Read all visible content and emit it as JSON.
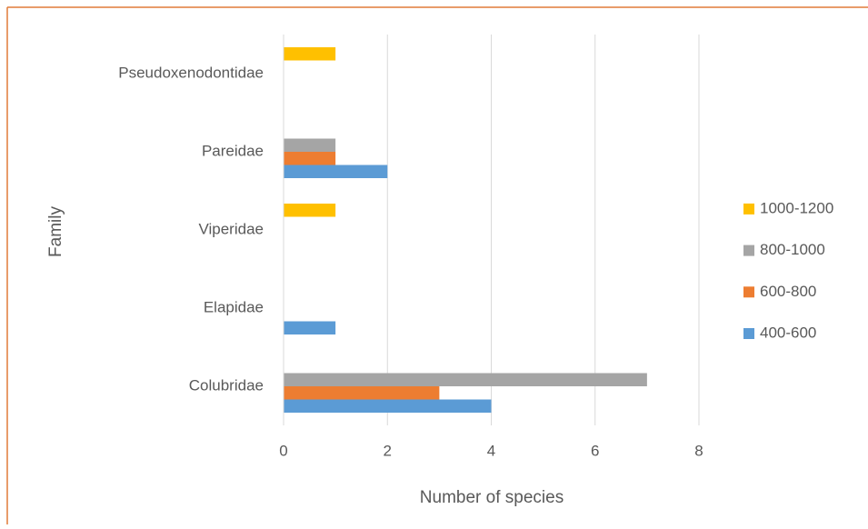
{
  "chart_data": {
    "type": "hbar",
    "categories": [
      "Colubridae",
      "Elapidae",
      "Viperidae",
      "Pareidae",
      "Pseudoxenodontidae"
    ],
    "series": [
      {
        "name": "400-600",
        "color": "#5b9bd5",
        "values": [
          4,
          1,
          0,
          2,
          0
        ]
      },
      {
        "name": "600-800",
        "color": "#ed7d31",
        "values": [
          3,
          0,
          0,
          1,
          0
        ]
      },
      {
        "name": "800-1000",
        "color": "#a5a5a5",
        "values": [
          7,
          0,
          0,
          1,
          0
        ]
      },
      {
        "name": "1000-1200",
        "color": "#ffc000",
        "values": [
          0,
          0,
          1,
          0,
          1
        ]
      }
    ],
    "x_label": "Number of species",
    "y_label": "Family",
    "xlim": [
      0,
      8
    ],
    "xticks": [
      0,
      2,
      4,
      6,
      8
    ],
    "grid": true,
    "legend": "right"
  }
}
